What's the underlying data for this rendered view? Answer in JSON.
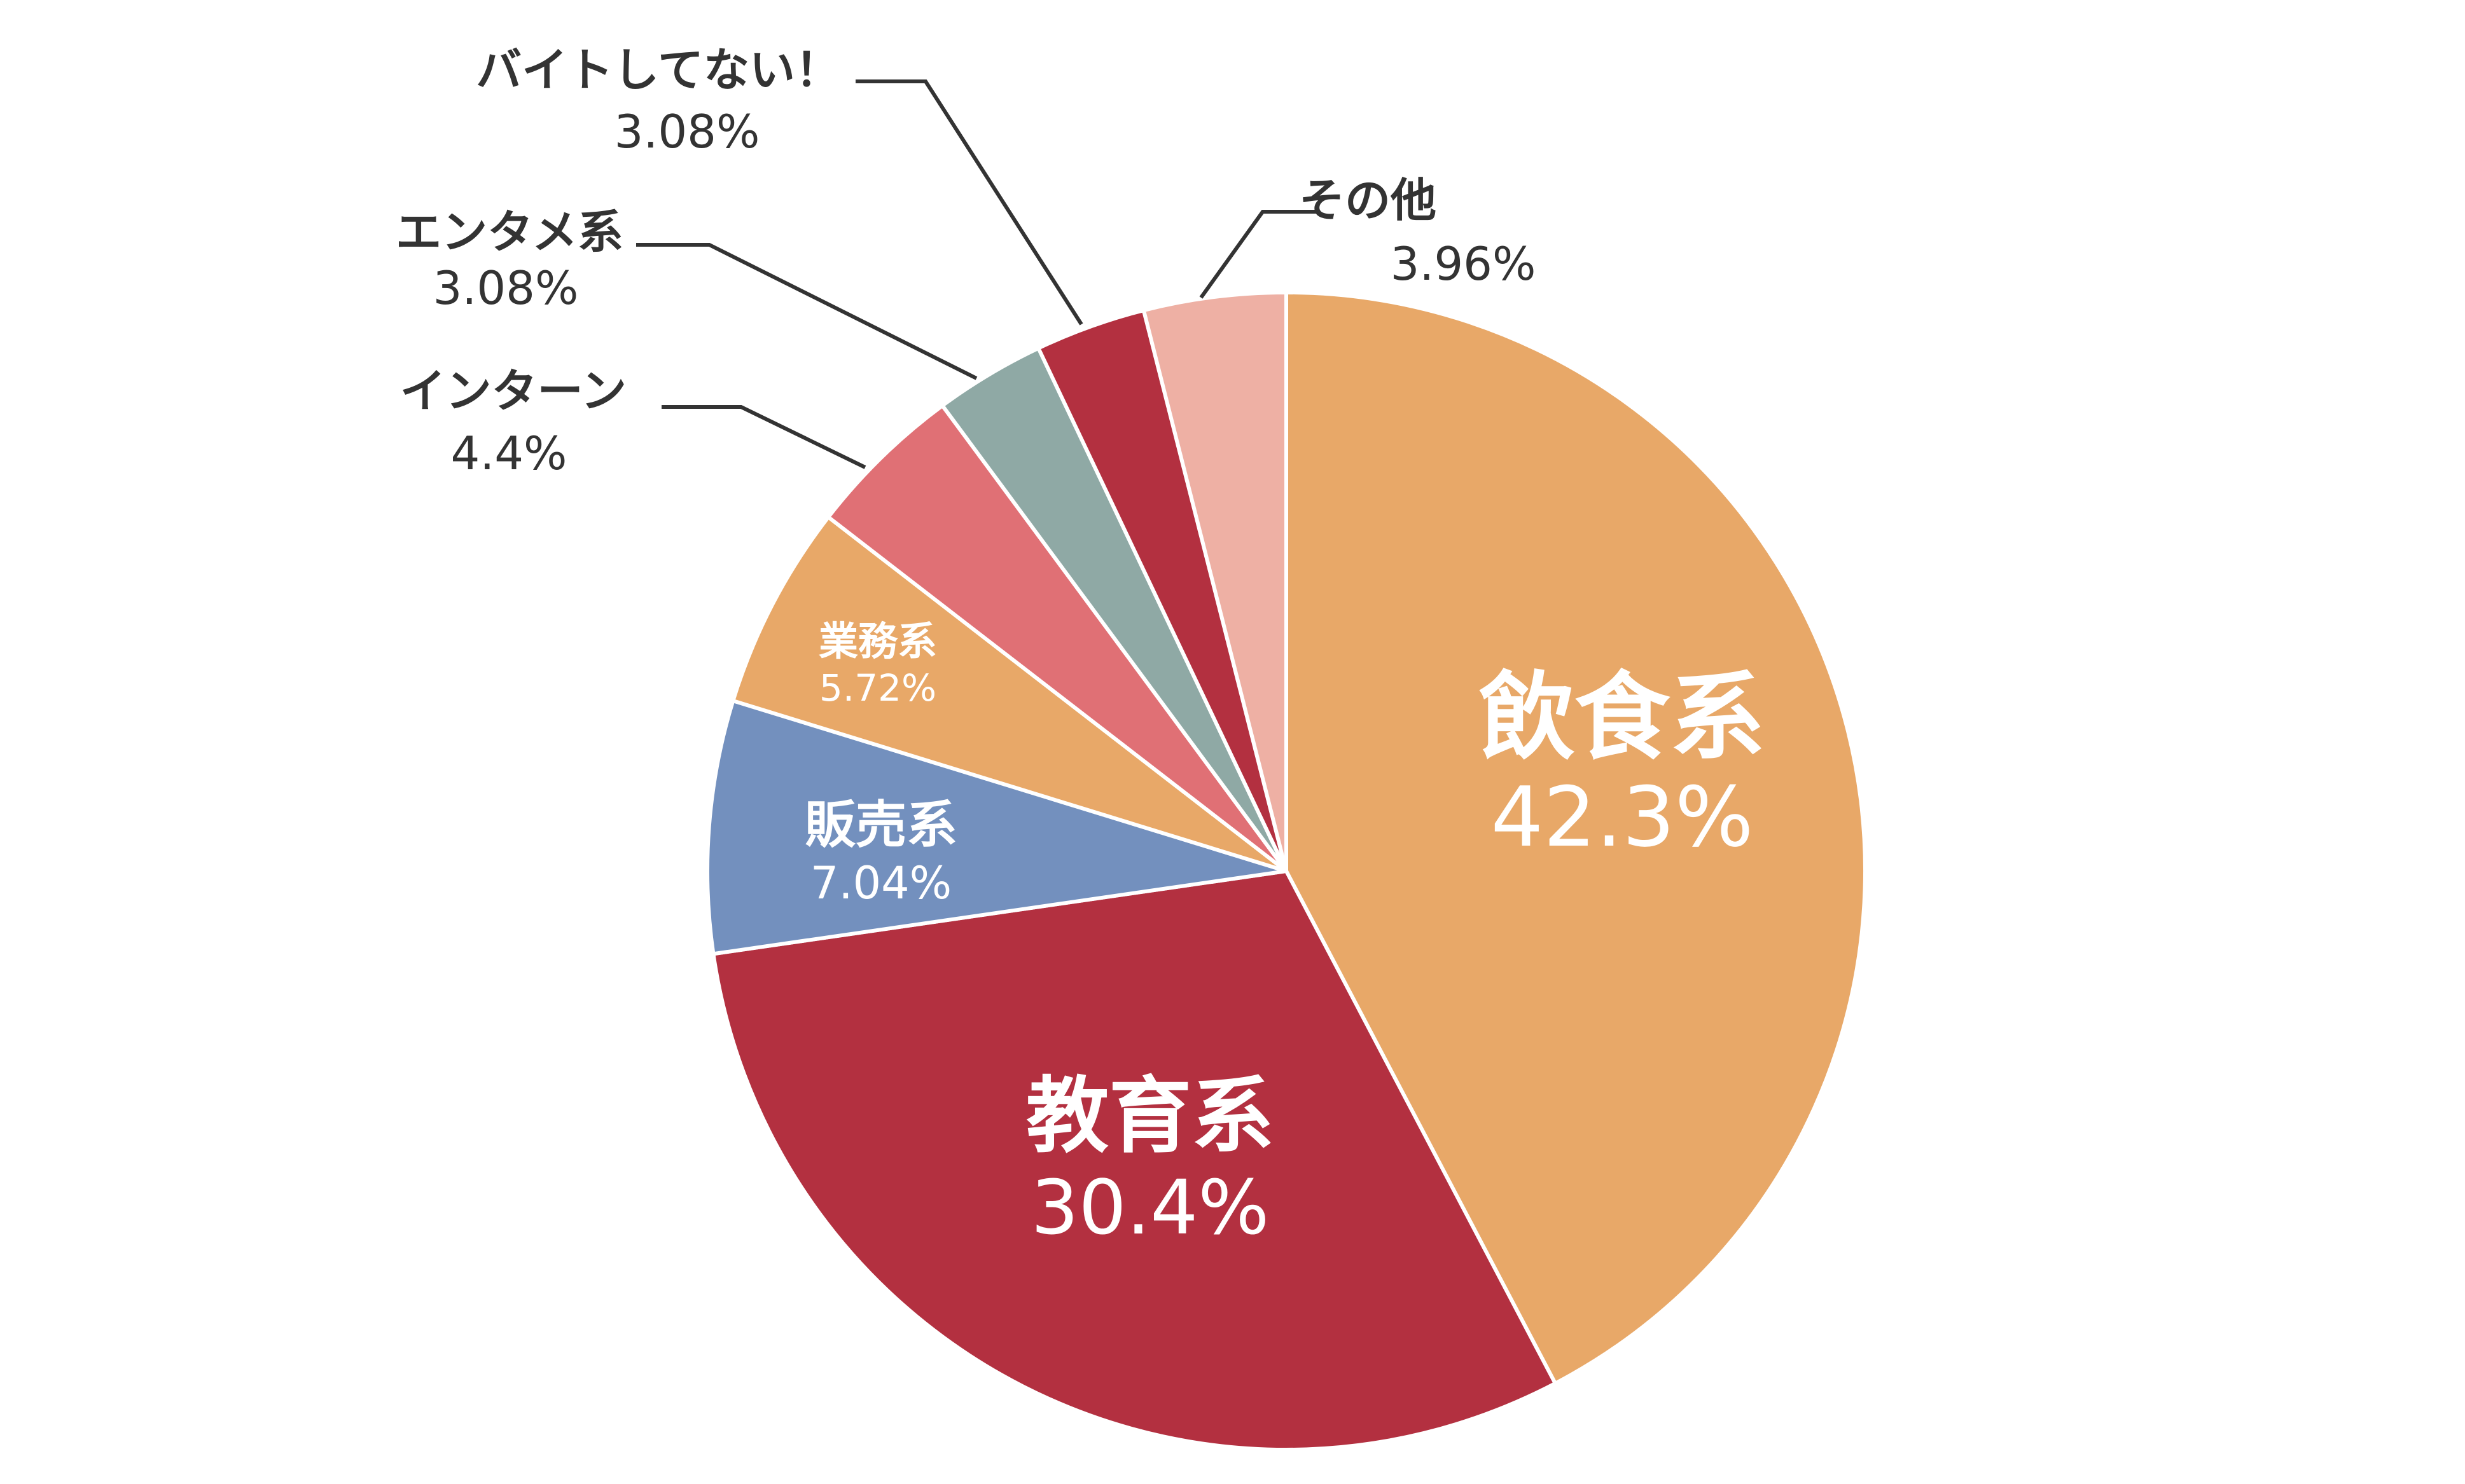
{
  "chart_data": {
    "type": "pie",
    "title": "",
    "start_angle_deg": 0,
    "direction": "clockwise",
    "slices": [
      {
        "name": "飲食系",
        "value": 42.3,
        "value_label": "42.3%",
        "color": "#E8A868"
      },
      {
        "name": "教育系",
        "value": 30.4,
        "value_label": "30.4%",
        "color": "#B33040"
      },
      {
        "name": "販売系",
        "value": 7.04,
        "value_label": "7.04%",
        "color": "#7390BE"
      },
      {
        "name": "業務系",
        "value": 5.72,
        "value_label": "5.72%",
        "color": "#E8A868"
      },
      {
        "name": "インターン",
        "value": 4.4,
        "value_label": "4.4%",
        "color": "#E07075"
      },
      {
        "name": "エンタメ系",
        "value": 3.08,
        "value_label": "3.08%",
        "color": "#8FA9A5"
      },
      {
        "name": "バイトしてない！",
        "value": 3.08,
        "value_label": "3.08%",
        "color": "#B33040"
      },
      {
        "name": "その他",
        "value": 3.96,
        "value_label": "3.96%",
        "color": "#EEB0A4"
      }
    ],
    "label_color_inside": "#FFFFFF",
    "label_color_outside": "#333333",
    "leader_color": "#333333",
    "separator_color": "#FFFFFF"
  }
}
